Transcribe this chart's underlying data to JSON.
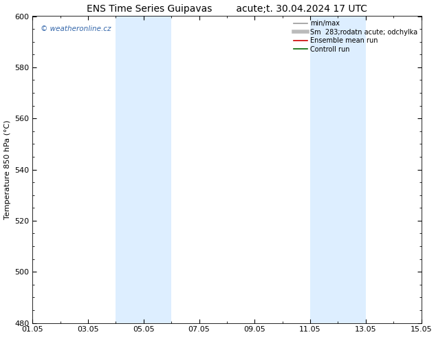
{
  "title": "ENS Time Series Guipavas        acute;t. 30.04.2024 17 UTC",
  "ylabel": "Temperature 850 hPa (°C)",
  "ylim": [
    480,
    600
  ],
  "yticks": [
    480,
    500,
    520,
    540,
    560,
    580,
    600
  ],
  "xtick_labels": [
    "01.05",
    "03.05",
    "05.05",
    "07.05",
    "09.05",
    "11.05",
    "13.05",
    "15.05"
  ],
  "xtick_positions": [
    0,
    2,
    4,
    6,
    8,
    10,
    12,
    14
  ],
  "xlim": [
    0,
    14
  ],
  "bg_color": "#ffffff",
  "plot_bg_color": "#ffffff",
  "shaded_regions": [
    {
      "xstart": 3.0,
      "xend": 5.0,
      "color": "#ddeeff"
    },
    {
      "xstart": 10.0,
      "xend": 12.0,
      "color": "#ddeeff"
    }
  ],
  "watermark_text": "© weatheronline.cz",
  "watermark_color": "#3366aa",
  "legend_entries": [
    {
      "label": "min/max",
      "color": "#999999",
      "lw": 1.2,
      "style": "-"
    },
    {
      "label": "Sm  283;rodatn acute; odchylka",
      "color": "#bbbbbb",
      "lw": 4,
      "style": "-"
    },
    {
      "label": "Ensemble mean run",
      "color": "#cc0000",
      "lw": 1.2,
      "style": "-"
    },
    {
      "label": "Controll run",
      "color": "#006600",
      "lw": 1.2,
      "style": "-"
    }
  ],
  "title_fontsize": 10,
  "axis_fontsize": 8,
  "tick_fontsize": 8,
  "legend_fontsize": 7
}
